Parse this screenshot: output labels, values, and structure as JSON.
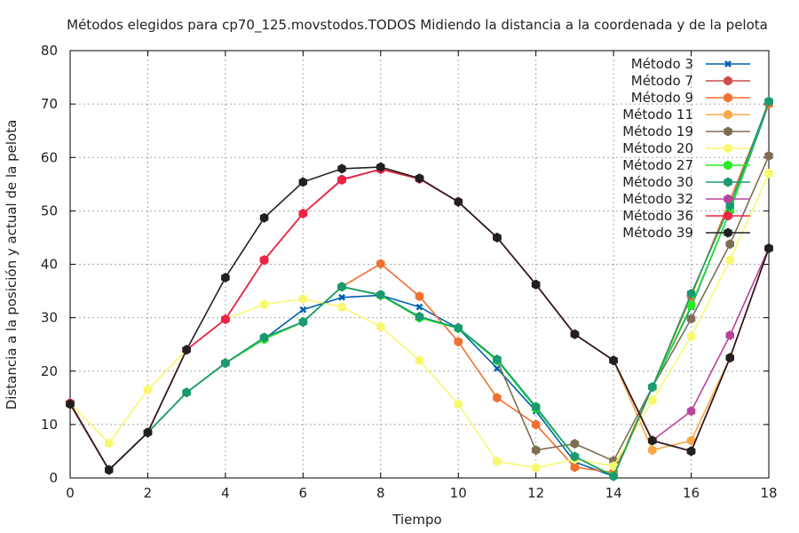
{
  "chart_data": {
    "type": "line",
    "title": "Métodos elegidos para cp70_125.movstodos.TODOS Midiendo la distancia a la coordenada y de la pelota",
    "xlabel": "Tiempo",
    "ylabel": "Distancia a la posición y actual de la pelota",
    "xlim": [
      0,
      18
    ],
    "ylim": [
      0,
      80
    ],
    "xticks": [
      0,
      2,
      4,
      6,
      8,
      10,
      12,
      14,
      16,
      18
    ],
    "yticks": [
      0,
      10,
      20,
      30,
      40,
      50,
      60,
      70,
      80
    ],
    "grid": true,
    "legend_position": "top-right",
    "x": [
      0,
      1,
      2,
      3,
      4,
      5,
      6,
      7,
      8,
      9,
      10,
      11,
      12,
      13,
      14,
      15,
      16,
      17,
      18
    ],
    "series": [
      {
        "name": "Método 3",
        "color": "#0060ad",
        "marker": "x",
        "values": [
          14,
          1.5,
          8.5,
          16,
          21.5,
          26,
          31.5,
          33.8,
          34.2,
          32,
          28,
          20.5,
          12.5,
          3,
          0.3,
          17,
          32,
          50,
          70
        ]
      },
      {
        "name": "Método 7",
        "color": "#cc4d4d",
        "marker": "dot",
        "values": [
          14,
          1.5,
          8.5,
          24,
          29.7,
          40.8,
          49.5,
          55.8,
          57.8,
          56,
          51.7,
          45,
          36.2,
          26.9,
          22,
          7,
          5,
          22.5,
          43
        ]
      },
      {
        "name": "Método 9",
        "color": "#f07030",
        "marker": "dot",
        "values": [
          14,
          1.5,
          8.5,
          16,
          21.5,
          26,
          29.2,
          35.8,
          40.1,
          34,
          25.5,
          15,
          10,
          2,
          1,
          17,
          34,
          52,
          70
        ]
      },
      {
        "name": "Método 11",
        "color": "#f8a845",
        "marker": "dot",
        "values": [
          14,
          1.5,
          8.5,
          24,
          29.7,
          40.8,
          49.5,
          55.8,
          57.8,
          56,
          51.7,
          45,
          36.2,
          26.9,
          22,
          5.2,
          7,
          22.5,
          43
        ]
      },
      {
        "name": "Método 19",
        "color": "#7d6e54",
        "marker": "dot",
        "values": [
          14,
          1.5,
          8.5,
          16,
          21.5,
          26,
          29.2,
          35.8,
          34.2,
          30,
          28,
          22,
          5.2,
          6.4,
          3.2,
          17,
          29.8,
          43.8,
          60.3
        ]
      },
      {
        "name": "Método 20",
        "color": "#f8f870",
        "marker": "dot",
        "values": [
          14,
          6.5,
          16.5,
          24,
          29.7,
          32.5,
          33.5,
          32,
          28.3,
          22,
          13.8,
          3.1,
          1.9,
          3.5,
          2.2,
          14.5,
          26.5,
          40.8,
          57
        ]
      },
      {
        "name": "Método 27",
        "color": "#22ee22",
        "marker": "dot",
        "values": [
          14,
          1.5,
          8.5,
          16,
          21.5,
          26,
          29.2,
          35.8,
          34.2,
          30,
          28,
          22,
          13,
          4,
          0.4,
          17,
          32.3,
          50,
          70.5
        ]
      },
      {
        "name": "Método 30",
        "color": "#1a9a6e",
        "marker": "dot",
        "values": [
          14,
          1.5,
          8.5,
          16,
          21.5,
          26.3,
          29.2,
          35.8,
          34.3,
          30.2,
          28.1,
          22.2,
          13.3,
          4,
          0.3,
          17,
          34.5,
          51,
          70.5
        ]
      },
      {
        "name": "Método 32",
        "color": "#bb449a",
        "marker": "dot",
        "values": [
          14,
          1.5,
          8.5,
          24,
          29.7,
          40.8,
          49.5,
          55.9,
          57.8,
          56,
          51.7,
          45,
          36.2,
          26.9,
          22,
          7,
          12.5,
          26.7,
          43
        ]
      },
      {
        "name": "Método 36",
        "color": "#ee2244",
        "marker": "dot",
        "values": [
          14,
          1.5,
          8.5,
          24,
          29.7,
          40.8,
          49.5,
          55.8,
          57.8,
          56,
          51.7,
          45,
          36.2,
          26.9,
          22,
          7,
          5,
          22.5,
          43
        ]
      },
      {
        "name": "Método 39",
        "color": "#202020",
        "marker": "dot",
        "values": [
          13.8,
          1.5,
          8.5,
          24,
          37.5,
          48.7,
          55.4,
          57.9,
          58.2,
          56.1,
          51.7,
          45,
          36.2,
          26.9,
          22,
          7,
          5,
          22.5,
          43
        ]
      }
    ]
  }
}
